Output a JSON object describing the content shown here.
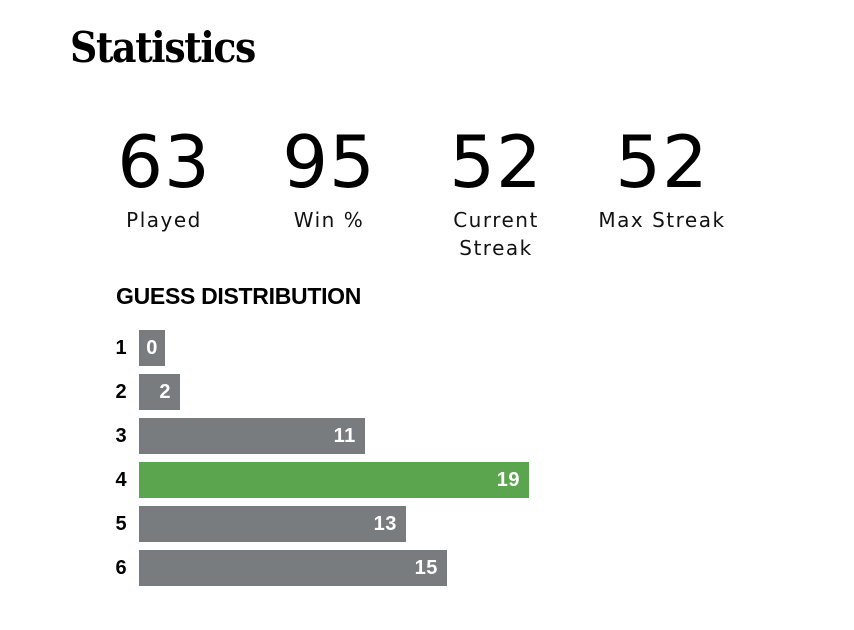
{
  "title": "Statistics",
  "stats": [
    {
      "value": "63",
      "label": "Played"
    },
    {
      "value": "95",
      "label": "Win %"
    },
    {
      "value": "52",
      "label": "Current\nStreak"
    },
    {
      "value": "52",
      "label": "Max Streak"
    }
  ],
  "distribution": {
    "title": "GUESS DISTRIBUTION",
    "highlight_guess": "4",
    "colors": {
      "bar": "#787c7e",
      "highlight": "#5aa54e",
      "text": "#ffffff"
    },
    "rows": [
      {
        "guess": "1",
        "count": 0
      },
      {
        "guess": "2",
        "count": 2
      },
      {
        "guess": "3",
        "count": 11
      },
      {
        "guess": "4",
        "count": 19
      },
      {
        "guess": "5",
        "count": 13
      },
      {
        "guess": "6",
        "count": 15
      }
    ]
  }
}
